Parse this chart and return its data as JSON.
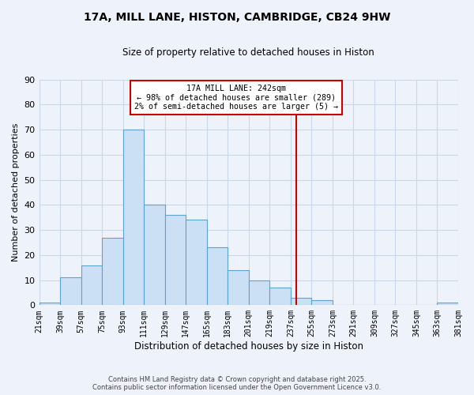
{
  "title": "17A, MILL LANE, HISTON, CAMBRIDGE, CB24 9HW",
  "subtitle": "Size of property relative to detached houses in Histon",
  "xlabel": "Distribution of detached houses by size in Histon",
  "ylabel": "Number of detached properties",
  "bin_edges": [
    21,
    39,
    57,
    75,
    93,
    111,
    129,
    147,
    165,
    183,
    201,
    219,
    237,
    255,
    273,
    291,
    309,
    327,
    345,
    363,
    381
  ],
  "bar_heights": [
    1,
    11,
    16,
    27,
    70,
    40,
    36,
    34,
    23,
    14,
    10,
    7,
    3,
    2,
    0,
    0,
    0,
    0,
    0,
    1
  ],
  "bar_color": "#cce0f5",
  "bar_edge_color": "#5ba3d0",
  "vline_x": 242,
  "vline_color": "#cc0000",
  "annotation_title": "17A MILL LANE: 242sqm",
  "annotation_line1": "← 98% of detached houses are smaller (289)",
  "annotation_line2": "2% of semi-detached houses are larger (5) →",
  "annotation_box_color": "#ffffff",
  "annotation_box_edge": "#cc0000",
  "ylim": [
    0,
    90
  ],
  "yticks": [
    0,
    10,
    20,
    30,
    40,
    50,
    60,
    70,
    80,
    90
  ],
  "footer1": "Contains HM Land Registry data © Crown copyright and database right 2025.",
  "footer2": "Contains public sector information licensed under the Open Government Licence v3.0.",
  "bg_color": "#eef2fa",
  "grid_color": "#c8d8ec"
}
